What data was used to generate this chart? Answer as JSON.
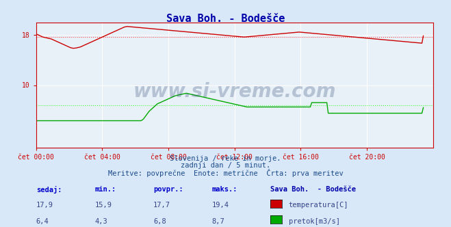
{
  "title": "Sava Boh. - Bodešče",
  "bg_color": "#d8e8f8",
  "plot_bg_color": "#e8f0f8",
  "grid_color": "#ffffff",
  "x_min": 0,
  "x_max": 288,
  "y_temp_min": 0,
  "y_temp_max": 20,
  "y_flow_min": 0,
  "y_flow_max": 20,
  "temp_color": "#cc0000",
  "flow_color": "#00aa00",
  "temp_max_line_color": "#ff0000",
  "flow_avg_line_color": "#00dd00",
  "temp_dotted_color": "#ff4444",
  "flow_dotted_color": "#44ff44",
  "watermark_color": "#1a3a6a",
  "text_color": "#1a4a8a",
  "axis_color": "#cc0000",
  "tick_color": "#cc0000",
  "xlabel_color": "#1a4a8a",
  "stats_label_color": "#0000cc",
  "stats_value_color": "#334488",
  "legend_title": "Sava Boh.  - Bodešče",
  "legend_temp": "temperatura[C]",
  "legend_flow": "pretok[m3/s]",
  "subtitle1": "Slovenija / reke in morje.",
  "subtitle2": "zadnji dan / 5 minut.",
  "subtitle3": "Meritve: povprečne  Enote: metrične  Črta: prva meritev",
  "sedaj_label": "sedaj:",
  "min_label": "min.:",
  "povpr_label": "povpr.:",
  "maks_label": "maks.:",
  "temp_sedaj": "17,9",
  "temp_min": "15,9",
  "temp_povpr": "17,7",
  "temp_maks": "19,4",
  "flow_sedaj": "6,4",
  "flow_min": "4,3",
  "flow_povpr": "6,8",
  "flow_maks": "8,7",
  "xtick_labels": [
    "čet 00:00",
    "čet 04:00",
    "čet 08:00",
    "čet 12:00",
    "čet 16:00",
    "čet 20:00"
  ],
  "xtick_pos": [
    0,
    48,
    96,
    144,
    192,
    240
  ],
  "ytick_temp": [
    10,
    18
  ],
  "temp_data": [
    18.2,
    18.1,
    18.0,
    17.9,
    17.8,
    17.7,
    17.65,
    17.6,
    17.55,
    17.5,
    17.45,
    17.4,
    17.3,
    17.2,
    17.1,
    17.0,
    16.9,
    16.8,
    16.7,
    16.6,
    16.5,
    16.4,
    16.3,
    16.2,
    16.1,
    16.0,
    15.95,
    15.9,
    15.92,
    15.95,
    16.0,
    16.05,
    16.1,
    16.2,
    16.3,
    16.4,
    16.5,
    16.6,
    16.7,
    16.8,
    16.9,
    17.0,
    17.1,
    17.2,
    17.3,
    17.4,
    17.5,
    17.6,
    17.7,
    17.8,
    17.9,
    18.0,
    18.1,
    18.2,
    18.3,
    18.4,
    18.5,
    18.6,
    18.7,
    18.8,
    18.9,
    19.0,
    19.1,
    19.2,
    19.3,
    19.35,
    19.4,
    19.38,
    19.36,
    19.34,
    19.32,
    19.3,
    19.28,
    19.26,
    19.24,
    19.22,
    19.2,
    19.18,
    19.16,
    19.14,
    19.12,
    19.1,
    19.08,
    19.06,
    19.04,
    19.02,
    19.0,
    18.98,
    18.96,
    18.94,
    18.92,
    18.9,
    18.88,
    18.86,
    18.84,
    18.82,
    18.8,
    18.78,
    18.76,
    18.74,
    18.72,
    18.7,
    18.68,
    18.66,
    18.64,
    18.62,
    18.6,
    18.58,
    18.56,
    18.54,
    18.52,
    18.5,
    18.48,
    18.46,
    18.44,
    18.42,
    18.4,
    18.38,
    18.36,
    18.34,
    18.32,
    18.3,
    18.28,
    18.26,
    18.24,
    18.22,
    18.2,
    18.18,
    18.16,
    18.14,
    18.12,
    18.1,
    18.08,
    18.06,
    18.04,
    18.02,
    18.0,
    17.98,
    17.96,
    17.94,
    17.92,
    17.9,
    17.88,
    17.86,
    17.84,
    17.82,
    17.8,
    17.78,
    17.76,
    17.74,
    17.72,
    17.7,
    17.72,
    17.74,
    17.76,
    17.78,
    17.8,
    17.82,
    17.84,
    17.86,
    17.88,
    17.9,
    17.92,
    17.94,
    17.96,
    17.98,
    18.0,
    18.02,
    18.04,
    18.06,
    18.08,
    18.1,
    18.12,
    18.14,
    18.16,
    18.18,
    18.2,
    18.22,
    18.24,
    18.26,
    18.28,
    18.3,
    18.32,
    18.34,
    18.36,
    18.38,
    18.4,
    18.42,
    18.44,
    18.46,
    18.48,
    18.5,
    18.48,
    18.46,
    18.44,
    18.42,
    18.4,
    18.38,
    18.36,
    18.34,
    18.32,
    18.3,
    18.28,
    18.26,
    18.24,
    18.22,
    18.2,
    18.18,
    18.16,
    18.14,
    18.12,
    18.1,
    18.08,
    18.06,
    18.04,
    18.02,
    18.0,
    17.98,
    17.96,
    17.94,
    17.92,
    17.9,
    17.88,
    17.86,
    17.84,
    17.82,
    17.8,
    17.78,
    17.76,
    17.74,
    17.72,
    17.7,
    17.68,
    17.66,
    17.64,
    17.62,
    17.6,
    17.58,
    17.56,
    17.54,
    17.52,
    17.5,
    17.48,
    17.46,
    17.44,
    17.42,
    17.4,
    17.38,
    17.36,
    17.34,
    17.32,
    17.3,
    17.28,
    17.26,
    17.24,
    17.22,
    17.2,
    17.18,
    17.16,
    17.14,
    17.12,
    17.1,
    17.08,
    17.06,
    17.04,
    17.02,
    17.0,
    16.98,
    16.96,
    16.94,
    16.92,
    16.9,
    16.88,
    16.86,
    16.84,
    16.82,
    16.8,
    16.78,
    16.76,
    16.74,
    16.72,
    17.9
  ],
  "flow_data": [
    4.3,
    4.3,
    4.3,
    4.3,
    4.3,
    4.3,
    4.3,
    4.3,
    4.3,
    4.3,
    4.3,
    4.3,
    4.3,
    4.3,
    4.3,
    4.3,
    4.3,
    4.3,
    4.3,
    4.3,
    4.3,
    4.3,
    4.3,
    4.3,
    4.3,
    4.3,
    4.3,
    4.3,
    4.3,
    4.3,
    4.3,
    4.3,
    4.3,
    4.3,
    4.3,
    4.3,
    4.3,
    4.3,
    4.3,
    4.3,
    4.3,
    4.3,
    4.3,
    4.3,
    4.3,
    4.3,
    4.3,
    4.3,
    4.3,
    4.3,
    4.3,
    4.3,
    4.3,
    4.3,
    4.3,
    4.3,
    4.3,
    4.3,
    4.3,
    4.3,
    4.3,
    4.3,
    4.3,
    4.3,
    4.3,
    4.3,
    4.3,
    4.3,
    4.3,
    4.3,
    4.3,
    4.3,
    4.3,
    4.3,
    4.3,
    4.3,
    4.3,
    4.4,
    4.6,
    4.9,
    5.2,
    5.5,
    5.8,
    6.0,
    6.2,
    6.4,
    6.6,
    6.8,
    7.0,
    7.1,
    7.2,
    7.3,
    7.4,
    7.5,
    7.6,
    7.7,
    7.8,
    7.9,
    8.0,
    8.1,
    8.2,
    8.3,
    8.35,
    8.4,
    8.45,
    8.5,
    8.55,
    8.6,
    8.65,
    8.7,
    8.65,
    8.6,
    8.55,
    8.5,
    8.45,
    8.4,
    8.35,
    8.3,
    8.25,
    8.2,
    8.15,
    8.1,
    8.05,
    8.0,
    7.95,
    7.9,
    7.85,
    7.8,
    7.75,
    7.7,
    7.65,
    7.6,
    7.55,
    7.5,
    7.45,
    7.4,
    7.35,
    7.3,
    7.25,
    7.2,
    7.15,
    7.1,
    7.05,
    7.0,
    6.95,
    6.9,
    6.85,
    6.8,
    6.75,
    6.7,
    6.65,
    6.6,
    6.55,
    6.5,
    6.5,
    6.5,
    6.5,
    6.5,
    6.5,
    6.5,
    6.5,
    6.5,
    6.5,
    6.5,
    6.5,
    6.5,
    6.5,
    6.5,
    6.5,
    6.5,
    6.5,
    6.5,
    6.5,
    6.5,
    6.5,
    6.5,
    6.5,
    6.5,
    6.5,
    6.5,
    6.5,
    6.5,
    6.5,
    6.5,
    6.5,
    6.5,
    6.5,
    6.5,
    6.5,
    6.5,
    6.5,
    6.5,
    6.5,
    6.5,
    6.5,
    6.5,
    6.5,
    6.5,
    6.5,
    6.5,
    7.2,
    7.2,
    7.2,
    7.2,
    7.2,
    7.2,
    7.2,
    7.2,
    7.2,
    7.2,
    7.2,
    7.2,
    5.5,
    5.5,
    5.5,
    5.5,
    5.5,
    5.5,
    5.5,
    5.5,
    5.5,
    5.5,
    5.5,
    5.5,
    5.5,
    5.5,
    5.5,
    5.5,
    5.5,
    5.5,
    5.5,
    5.5,
    5.5,
    5.5,
    5.5,
    5.5,
    5.5,
    5.5,
    5.5,
    5.5,
    5.5,
    5.5,
    5.5,
    5.5,
    5.5,
    5.5,
    5.5,
    5.5,
    5.5,
    5.5,
    5.5,
    5.5,
    5.5,
    5.5,
    5.5,
    5.5,
    5.5,
    5.5,
    5.5,
    5.5,
    5.5,
    5.5,
    5.5,
    5.5,
    5.5,
    5.5,
    5.5,
    5.5,
    5.5,
    5.5,
    5.5,
    5.5,
    5.5,
    5.5,
    5.5,
    5.5,
    5.5,
    5.5,
    5.5,
    5.5,
    5.5,
    6.4
  ]
}
